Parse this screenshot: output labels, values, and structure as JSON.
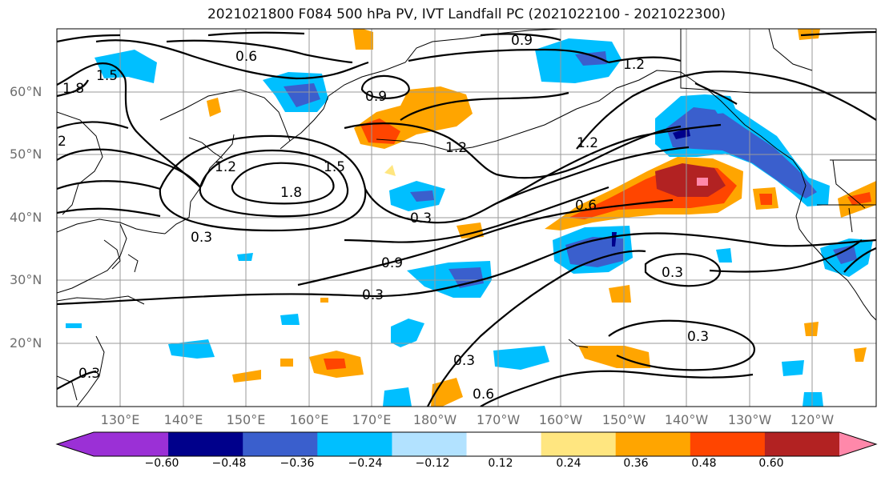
{
  "title": "2021021800 F084 500 hPa PV, IVT Landfall PC (2021022100 - 2021022300)",
  "map": {
    "lat_labels": [
      "60°N",
      "50°N",
      "40°N",
      "30°N",
      "20°N"
    ],
    "lon_labels": [
      "130°E",
      "140°E",
      "150°E",
      "160°E",
      "170°E",
      "180°W",
      "170°W",
      "160°W",
      "150°W",
      "140°W",
      "130°W",
      "120°W"
    ],
    "contour_labels": [
      "0.9",
      "1.2",
      "0.6",
      "1.5",
      "1.8",
      "0.9",
      "1.2",
      "1.2",
      "1.8",
      "1.5",
      "1.2",
      "0.3",
      "0.6",
      "0.3",
      "0.9",
      "0.3",
      "0.3",
      "0.3",
      "0.3",
      "0.6",
      "0.3",
      "2"
    ]
  },
  "colorbar": {
    "tick_labels": [
      "−0.60",
      "−0.48",
      "−0.36",
      "−0.24",
      "−0.12",
      "0.12",
      "0.24",
      "0.36",
      "0.48",
      "0.60"
    ],
    "colors": [
      "#9b30d6",
      "#00008b",
      "#3a5fcd",
      "#00bfff",
      "#b2e2ff",
      "#ffffff",
      "#ffe680",
      "#ffa500",
      "#ff4500",
      "#b22222",
      "#ff88aa",
      "#ff88aa"
    ]
  }
}
